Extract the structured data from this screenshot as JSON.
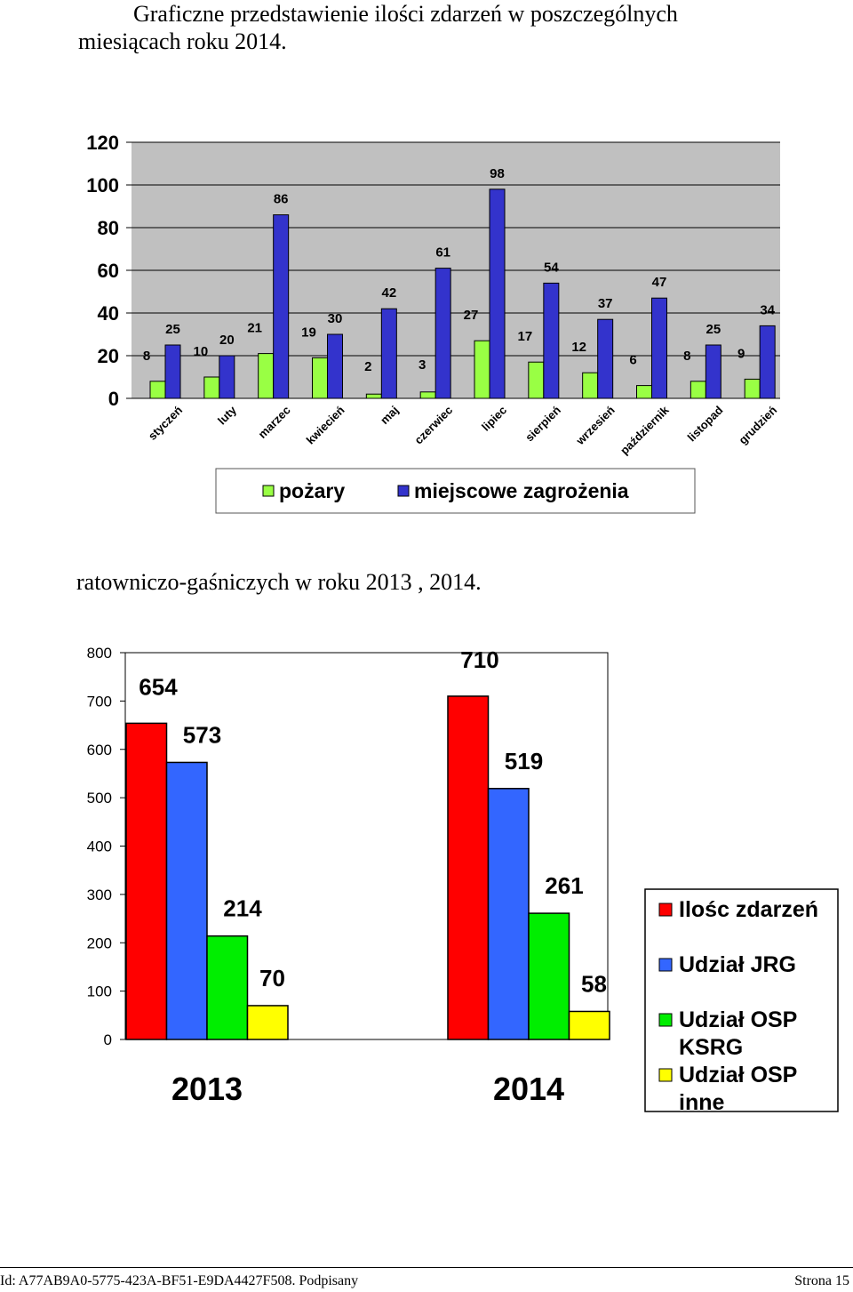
{
  "heading_top": {
    "line1": "Graficzne przedstawienie ilości zdarzeń w poszczególnych",
    "line2": "miesiącach roku 2014."
  },
  "heading_middle": "ratowniczo-gaśniczych  w roku 2013 , 2014.",
  "footer": {
    "left": "Id: A77AB9A0-5775-423A-BF51-E9DA4427F508. Podpisany",
    "right": "Strona 15"
  },
  "chart_data": [
    {
      "type": "bar",
      "title": "",
      "categories": [
        "styczeń",
        "luty",
        "marzec",
        "kwiecień",
        "maj",
        "czerwiec",
        "lipiec",
        "sierpień",
        "wrzesień",
        "październik",
        "listopad",
        "grudzień"
      ],
      "series": [
        {
          "name": "pożary",
          "values": [
            8,
            10,
            21,
            19,
            2,
            3,
            27,
            17,
            12,
            6,
            8,
            9
          ],
          "color": "#99ff44"
        },
        {
          "name": "miejscowe zagrożenia",
          "values": [
            25,
            20,
            86,
            30,
            42,
            61,
            98,
            54,
            37,
            47,
            25,
            34
          ],
          "color": "#3333cc"
        }
      ],
      "yticks": [
        "0",
        "20",
        "40",
        "60",
        "80",
        "100",
        "120"
      ],
      "ylim": [
        0,
        120
      ],
      "xlabel": "",
      "ylabel": "",
      "grid": true,
      "legend": "bottom"
    },
    {
      "type": "bar",
      "title": "",
      "categories": [
        "2013",
        "2014"
      ],
      "series": [
        {
          "name": "Ilośc zdarzeń",
          "values": [
            654,
            710
          ],
          "color": "#ff0000"
        },
        {
          "name": "Udział JRG",
          "values": [
            573,
            519
          ],
          "color": "#3366ff"
        },
        {
          "name": "Udział OSP KSRG",
          "values": [
            214,
            261
          ],
          "color": "#00ee00"
        },
        {
          "name": "Udział OSP inne",
          "values": [
            70,
            58
          ],
          "color": "#ffff00"
        }
      ],
      "legend_lines": [
        [
          "Ilośc zdarzeń"
        ],
        [
          "Udział JRG"
        ],
        [
          "Udział OSP",
          "KSRG"
        ],
        [
          "Udział OSP",
          "inne"
        ]
      ],
      "yticks": [
        "0",
        "100",
        "200",
        "300",
        "400",
        "500",
        "600",
        "700",
        "800"
      ],
      "ylim": [
        0,
        800
      ],
      "xlabel": "",
      "ylabel": "",
      "grid": false,
      "legend": "right"
    }
  ]
}
